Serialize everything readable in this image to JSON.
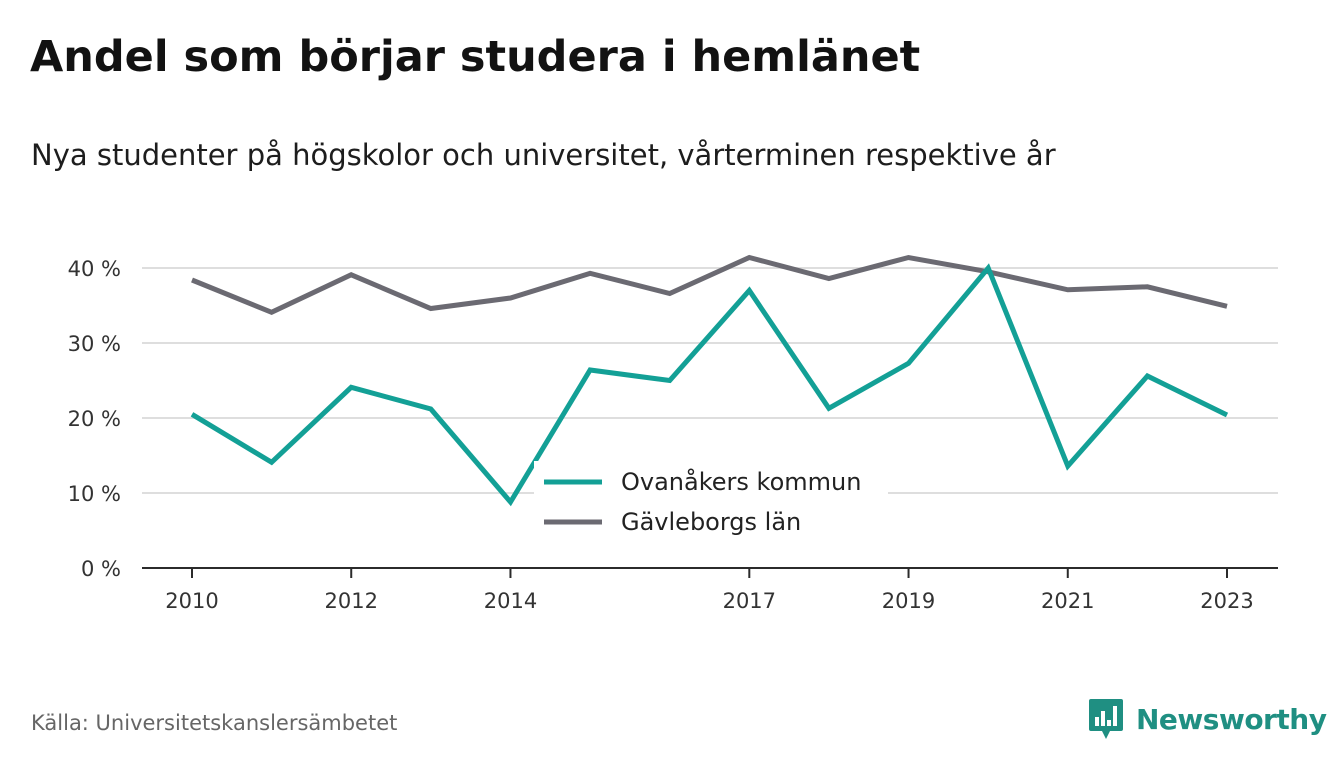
{
  "title": "Andel som börjar studera i hemlänet",
  "subtitle": "Nya studenter på högskolor och universitet, vårterminen respektive år",
  "source": "Källa: Universitetskanslersämbetet",
  "brand": {
    "name": "Newsworthy",
    "icon": "newsworthy-logo-icon",
    "color": "#1f8f82"
  },
  "chart_data": {
    "type": "line",
    "x": [
      2010,
      2011,
      2012,
      2013,
      2014,
      2015,
      2016,
      2017,
      2018,
      2019,
      2020,
      2021,
      2022,
      2023
    ],
    "x_tick_values": [
      2010,
      2012,
      2014,
      2017,
      2019,
      2021,
      2023
    ],
    "x_tick_labels": [
      "2010",
      "2012",
      "2014",
      "2017",
      "2019",
      "2021",
      "2023"
    ],
    "y_tick_values": [
      0,
      10,
      20,
      30,
      40
    ],
    "y_tick_labels": [
      "0 %",
      "10 %",
      "20 %",
      "30 %",
      "40 %"
    ],
    "ylim": [
      0,
      40
    ],
    "grid": true,
    "legend_position": "bottom-center",
    "series": [
      {
        "name": "Ovanåkers kommun",
        "color": "#13a096",
        "values": [
          20.5,
          14.1,
          24.1,
          21.2,
          8.8,
          26.4,
          25.0,
          37.0,
          21.3,
          27.3,
          40.0,
          13.6,
          25.6,
          20.4
        ]
      },
      {
        "name": "Gävleborgs län",
        "color": "#6b6a72",
        "values": [
          38.4,
          34.1,
          39.1,
          34.6,
          36.0,
          39.3,
          36.6,
          41.4,
          38.6,
          41.4,
          39.5,
          37.1,
          37.5,
          34.9
        ]
      }
    ]
  }
}
